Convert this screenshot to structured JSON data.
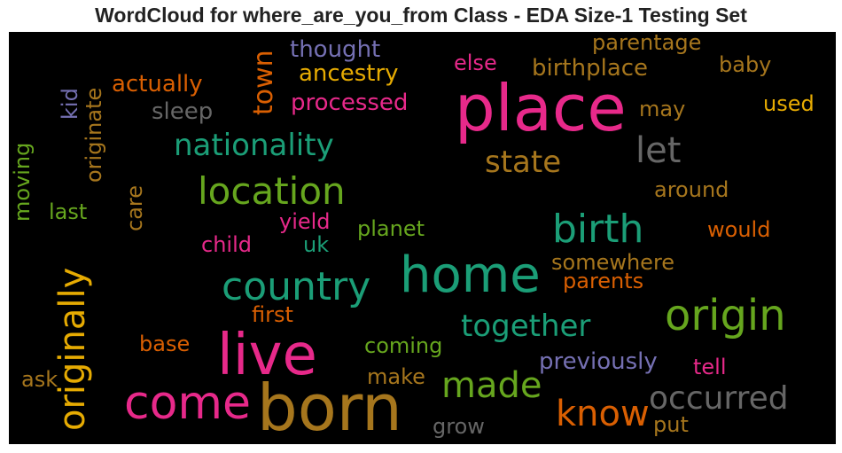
{
  "title": "WordCloud for where_are_you_from Class - EDA Size-1 Testing Set",
  "chart_data": {
    "type": "wordcloud",
    "title": "WordCloud for where_are_you_from Class - EDA Size-1 Testing Set",
    "background": "#000000",
    "colormap": "Dark2",
    "words": [
      {
        "text": "place",
        "weight": 1.0,
        "color": "#e7298a",
        "orientation": "horizontal"
      },
      {
        "text": "born",
        "weight": 0.95,
        "color": "#a6761d",
        "orientation": "horizontal"
      },
      {
        "text": "live",
        "weight": 0.88,
        "color": "#e7298a",
        "orientation": "horizontal"
      },
      {
        "text": "home",
        "weight": 0.83,
        "color": "#1b9e77",
        "orientation": "horizontal"
      },
      {
        "text": "origin",
        "weight": 0.72,
        "color": "#66a61e",
        "orientation": "horizontal"
      },
      {
        "text": "come",
        "weight": 0.7,
        "color": "#e7298a",
        "orientation": "horizontal"
      },
      {
        "text": "country",
        "weight": 0.63,
        "color": "#1b9e77",
        "orientation": "horizontal"
      },
      {
        "text": "birth",
        "weight": 0.63,
        "color": "#1b9e77",
        "orientation": "horizontal"
      },
      {
        "text": "location",
        "weight": 0.6,
        "color": "#66a61e",
        "orientation": "horizontal"
      },
      {
        "text": "originally",
        "weight": 0.58,
        "color": "#e6ab02",
        "orientation": "vertical"
      },
      {
        "text": "made",
        "weight": 0.57,
        "color": "#66a61e",
        "orientation": "horizontal"
      },
      {
        "text": "know",
        "weight": 0.55,
        "color": "#d95f02",
        "orientation": "horizontal"
      },
      {
        "text": "let",
        "weight": 0.55,
        "color": "#666666",
        "orientation": "horizontal"
      },
      {
        "text": "occurred",
        "weight": 0.51,
        "color": "#666666",
        "orientation": "horizontal"
      },
      {
        "text": "together",
        "weight": 0.48,
        "color": "#1b9e77",
        "orientation": "horizontal"
      },
      {
        "text": "nationality",
        "weight": 0.46,
        "color": "#1b9e77",
        "orientation": "horizontal"
      },
      {
        "text": "state",
        "weight": 0.46,
        "color": "#a6761d",
        "orientation": "horizontal"
      },
      {
        "text": "town",
        "weight": 0.43,
        "color": "#d95f02",
        "orientation": "vertical"
      },
      {
        "text": "thought",
        "weight": 0.37,
        "color": "#7570b3",
        "orientation": "horizontal"
      },
      {
        "text": "previously",
        "weight": 0.37,
        "color": "#7570b3",
        "orientation": "horizontal"
      },
      {
        "text": "ancestry",
        "weight": 0.36,
        "color": "#e6ab02",
        "orientation": "horizontal"
      },
      {
        "text": "processed",
        "weight": 0.36,
        "color": "#e7298a",
        "orientation": "horizontal"
      },
      {
        "text": "actually",
        "weight": 0.36,
        "color": "#d95f02",
        "orientation": "horizontal"
      },
      {
        "text": "sleep",
        "weight": 0.36,
        "color": "#666666",
        "orientation": "horizontal"
      },
      {
        "text": "birthplace",
        "weight": 0.36,
        "color": "#a6761d",
        "orientation": "horizontal"
      },
      {
        "text": "parentage",
        "weight": 0.34,
        "color": "#a6761d",
        "orientation": "horizontal"
      },
      {
        "text": "baby",
        "weight": 0.34,
        "color": "#a6761d",
        "orientation": "horizontal"
      },
      {
        "text": "used",
        "weight": 0.34,
        "color": "#e6ab02",
        "orientation": "horizontal"
      },
      {
        "text": "may",
        "weight": 0.34,
        "color": "#a6761d",
        "orientation": "horizontal"
      },
      {
        "text": "else",
        "weight": 0.32,
        "color": "#e7298a",
        "orientation": "horizontal"
      },
      {
        "text": "around",
        "weight": 0.34,
        "color": "#a6761d",
        "orientation": "horizontal"
      },
      {
        "text": "would",
        "weight": 0.34,
        "color": "#d95f02",
        "orientation": "horizontal"
      },
      {
        "text": "somewhere",
        "weight": 0.34,
        "color": "#a6761d",
        "orientation": "horizontal"
      },
      {
        "text": "parents",
        "weight": 0.34,
        "color": "#d95f02",
        "orientation": "horizontal"
      },
      {
        "text": "planet",
        "weight": 0.33,
        "color": "#66a61e",
        "orientation": "horizontal"
      },
      {
        "text": "yield",
        "weight": 0.33,
        "color": "#e7298a",
        "orientation": "horizontal"
      },
      {
        "text": "child",
        "weight": 0.33,
        "color": "#e7298a",
        "orientation": "horizontal"
      },
      {
        "text": "uk",
        "weight": 0.33,
        "color": "#1b9e77",
        "orientation": "horizontal"
      },
      {
        "text": "first",
        "weight": 0.33,
        "color": "#d95f02",
        "orientation": "horizontal"
      },
      {
        "text": "coming",
        "weight": 0.33,
        "color": "#66a61e",
        "orientation": "horizontal"
      },
      {
        "text": "base",
        "weight": 0.33,
        "color": "#d95f02",
        "orientation": "horizontal"
      },
      {
        "text": "make",
        "weight": 0.33,
        "color": "#a6761d",
        "orientation": "horizontal"
      },
      {
        "text": "ask",
        "weight": 0.33,
        "color": "#a6761d",
        "orientation": "horizontal"
      },
      {
        "text": "tell",
        "weight": 0.33,
        "color": "#e7298a",
        "orientation": "horizontal"
      },
      {
        "text": "grow",
        "weight": 0.33,
        "color": "#666666",
        "orientation": "horizontal"
      },
      {
        "text": "put",
        "weight": 0.33,
        "color": "#a6761d",
        "orientation": "horizontal"
      },
      {
        "text": "last",
        "weight": 0.33,
        "color": "#66a61e",
        "orientation": "horizontal"
      },
      {
        "text": "moving",
        "weight": 0.33,
        "color": "#66a61e",
        "orientation": "vertical"
      },
      {
        "text": "kid",
        "weight": 0.33,
        "color": "#7570b3",
        "orientation": "vertical"
      },
      {
        "text": "originate",
        "weight": 0.33,
        "color": "#a6761d",
        "orientation": "vertical"
      },
      {
        "text": "care",
        "weight": 0.33,
        "color": "#a6761d",
        "orientation": "vertical"
      }
    ]
  }
}
